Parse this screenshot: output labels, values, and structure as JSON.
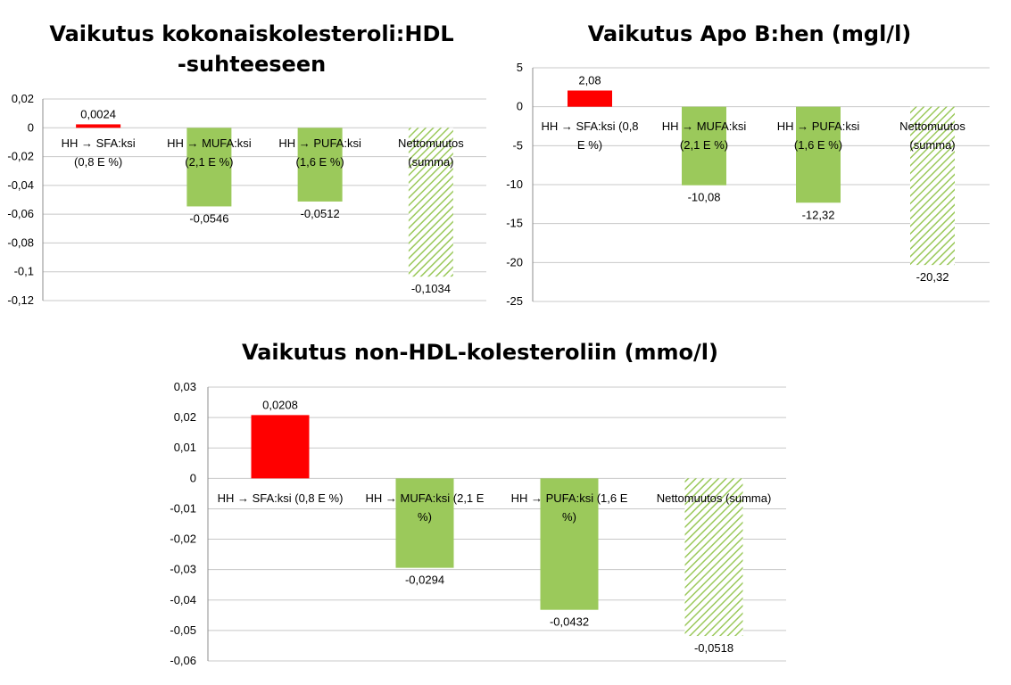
{
  "colors": {
    "red": "#ff0000",
    "green": "#9bc95b",
    "hatch": "#9bc95b",
    "grid": "#c8c8c8"
  },
  "chart_data": [
    {
      "type": "bar",
      "title": "Vaikutus kokonaiskolesteroli:HDL -suhteeseen",
      "title_lines": [
        "Vaikutus kokonaiskolesteroli:HDL",
        "-suhteeseen"
      ],
      "categories": [
        [
          "HH → SFA:ksi",
          "(0,8 E %)"
        ],
        [
          "HH → MUFA:ksi",
          "(2,1 E %)"
        ],
        [
          "HH → PUFA:ksi",
          "(1,6 E %)"
        ],
        [
          "Nettomuutos",
          "(summa)"
        ]
      ],
      "values": [
        0.0024,
        -0.0546,
        -0.0512,
        -0.1034
      ],
      "value_labels": [
        "0,0024",
        "-0,0546",
        "-0,0512",
        "-0,1034"
      ],
      "bar_styles": [
        "red",
        "green",
        "green",
        "hatch"
      ],
      "ylim": [
        -0.12,
        0.02
      ],
      "yticks": [
        0.02,
        0,
        -0.02,
        -0.04,
        -0.06,
        -0.08,
        -0.1,
        -0.12
      ],
      "ytick_labels": [
        "0,02",
        "0",
        "-0,02",
        "-0,04",
        "-0,06",
        "-0,08",
        "-0,1",
        "-0,12"
      ],
      "grid": true
    },
    {
      "type": "bar",
      "title": "Vaikutus Apo B:hen (mgl/l)",
      "title_lines": [
        "Vaikutus Apo B:hen (mgl/l)"
      ],
      "categories": [
        [
          "HH → SFA:ksi  (0,8",
          "E %)"
        ],
        [
          "HH → MUFA:ksi",
          "(2,1 E %)"
        ],
        [
          "HH → PUFA:ksi",
          "(1,6 E %)"
        ],
        [
          "Nettomuutos",
          "(summa)"
        ]
      ],
      "values": [
        2.08,
        -10.08,
        -12.32,
        -20.32
      ],
      "value_labels": [
        "2,08",
        "-10,08",
        "-12,32",
        "-20,32"
      ],
      "bar_styles": [
        "red",
        "green",
        "green",
        "hatch"
      ],
      "ylim": [
        -25,
        5
      ],
      "yticks": [
        5,
        0,
        -5,
        -10,
        -15,
        -20,
        -25
      ],
      "ytick_labels": [
        "5",
        "0",
        "-5",
        "-10",
        "-15",
        "-20",
        "-25"
      ],
      "grid": true
    },
    {
      "type": "bar",
      "title": "Vaikutus non-HDL-kolesteroliin (mmo/l)",
      "title_lines": [
        "Vaikutus non-HDL-kolesteroliin (mmo/l)"
      ],
      "categories": [
        [
          "HH → SFA:ksi  (0,8 E %)"
        ],
        [
          "HH → MUFA:ksi (2,1 E",
          "%)"
        ],
        [
          "HH → PUFA:ksi (1,6 E",
          "%)"
        ],
        [
          "Nettomuutos (summa)"
        ]
      ],
      "values": [
        0.0208,
        -0.0294,
        -0.0432,
        -0.0518
      ],
      "value_labels": [
        "0,0208",
        "-0,0294",
        "-0,0432",
        "-0,0518"
      ],
      "bar_styles": [
        "red",
        "green",
        "green",
        "hatch"
      ],
      "ylim": [
        -0.06,
        0.03
      ],
      "yticks": [
        0.03,
        0.02,
        0.01,
        0,
        -0.01,
        -0.02,
        -0.03,
        -0.04,
        -0.05,
        -0.06
      ],
      "ytick_labels": [
        "0,03",
        "0,02",
        "0,01",
        "0",
        "-0,01",
        "-0,02",
        "-0,03",
        "-0,04",
        "-0,05",
        "-0,06"
      ],
      "grid": true
    }
  ]
}
